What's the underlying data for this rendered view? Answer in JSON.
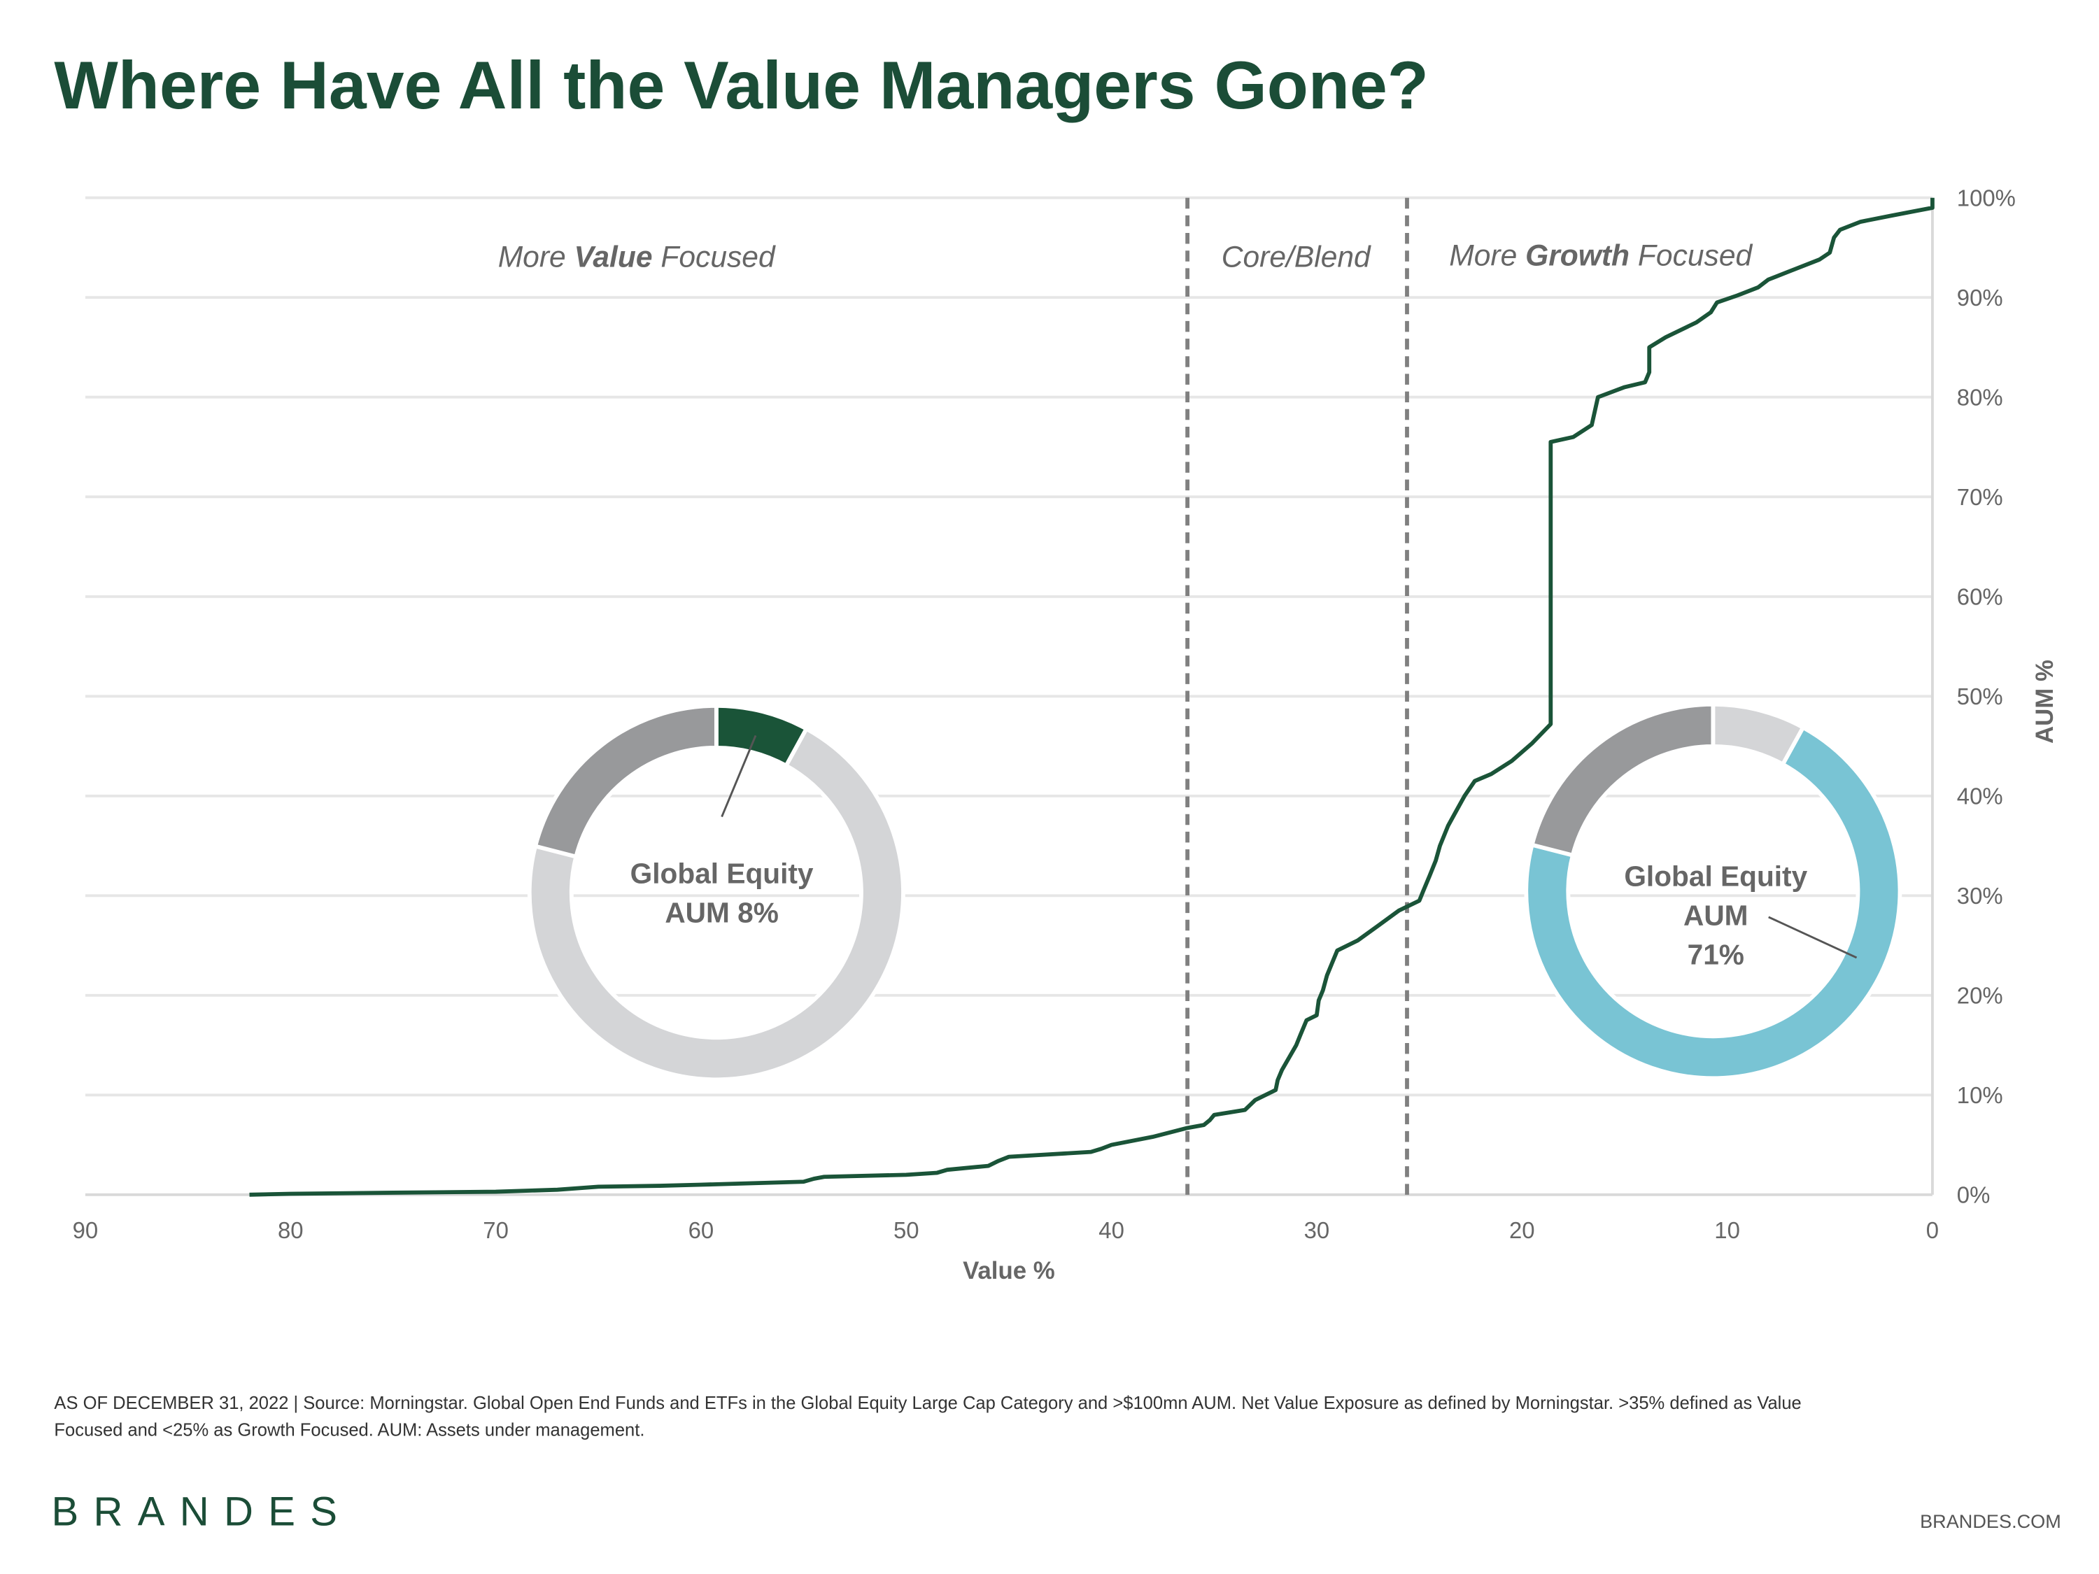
{
  "title": "Where Have All the Value Managers Gone?",
  "colors": {
    "title": "#1b4d37",
    "line": "#1a5438",
    "value_segment": "#1a5438",
    "growth_segment": "#79c4d4",
    "core_segment": "#98999b",
    "other_segment": "#d4d5d7",
    "grid": "#e6e6e6",
    "text": "#666666",
    "divider": "#808080"
  },
  "regions": {
    "value": {
      "prefix": "More ",
      "bold": "Value",
      "suffix": " Focused"
    },
    "core": "Core/Blend",
    "growth": {
      "prefix": "More ",
      "bold": "Growth",
      "suffix": " Focused"
    }
  },
  "donuts": {
    "left": {
      "line1": "Global Equity",
      "line2": "AUM 8%",
      "highlight": "value",
      "segments": [
        {
          "label": "Value",
          "pct": 8
        },
        {
          "label": "Growth",
          "pct": 71
        },
        {
          "label": "Core/Blend",
          "pct": 21
        }
      ]
    },
    "right": {
      "line1": "Global Equity",
      "line2": "AUM",
      "line3": "71%",
      "highlight": "growth",
      "segments": [
        {
          "label": "Value",
          "pct": 8
        },
        {
          "label": "Growth",
          "pct": 71
        },
        {
          "label": "Core/Blend",
          "pct": 21
        }
      ]
    }
  },
  "chart_data": {
    "type": "line",
    "xlabel": "Value %",
    "ylabel": "AUM %",
    "xlim": [
      90,
      0
    ],
    "ylim": [
      0,
      100
    ],
    "x_reversed": true,
    "y_axis_side": "right",
    "grid": "horizontal",
    "xticks": [
      "90",
      "80",
      "70",
      "60",
      "50",
      "40",
      "30",
      "20",
      "10",
      "0"
    ],
    "yticks": [
      "0%",
      "10%",
      "20%",
      "30%",
      "40%",
      "50%",
      "60%",
      "70%",
      "80%",
      "90%",
      "100%"
    ],
    "dividers": [
      36.3,
      25.6
    ],
    "series": [
      {
        "x": [
          82,
          80,
          75,
          70,
          67,
          65,
          62,
          60,
          55,
          54.5,
          54,
          50,
          48.5,
          48,
          46,
          45.5,
          45,
          41,
          40.5,
          40,
          38,
          36.3,
          35.5,
          35.2,
          35,
          33.5,
          33,
          32,
          31.9,
          31.7,
          31,
          30.8,
          30.5,
          30,
          29.9,
          29.7,
          29.5,
          29,
          28,
          27,
          26,
          25,
          24.8,
          24.5,
          24.2,
          24,
          23.6,
          23.2,
          22.8,
          22.3,
          21.5,
          20.5,
          19.5,
          18.6,
          18.6,
          17.5,
          16.6,
          16.3,
          15,
          14,
          13.8,
          13.8,
          13,
          11.5,
          10.8,
          10.5,
          9.5,
          8.5,
          8,
          7,
          5.5,
          5,
          4.8,
          4.5,
          3.5,
          2,
          1,
          0,
          0
        ],
        "y": [
          0,
          0.1,
          0.2,
          0.3,
          0.5,
          0.8,
          0.9,
          1.0,
          1.3,
          1.6,
          1.8,
          2.0,
          2.2,
          2.5,
          2.9,
          3.4,
          3.8,
          4.3,
          4.6,
          5.0,
          5.8,
          6.7,
          7.0,
          7.5,
          8.0,
          8.5,
          9.5,
          10.5,
          11.5,
          12.5,
          15,
          16,
          17.5,
          18,
          19.5,
          20.5,
          22,
          24.5,
          25.5,
          27,
          28.5,
          29.5,
          30.5,
          32,
          33.5,
          35,
          37,
          38.5,
          40,
          41.5,
          42.2,
          43.5,
          45.3,
          47.2,
          75.5,
          76,
          77.2,
          80,
          81,
          81.5,
          82.5,
          85,
          86,
          87.5,
          88.5,
          89.5,
          90.2,
          91,
          91.8,
          92.6,
          93.8,
          94.5,
          96,
          96.8,
          97.6,
          98.2,
          98.6,
          99,
          100
        ]
      }
    ]
  },
  "footnote": "AS OF DECEMBER 31, 2022 | Source: Morningstar. Global Open End Funds and ETFs in the Global Equity Large Cap Category and >$100mn AUM. Net Value Exposure as defined by Morningstar. >35% defined as Value",
  "footnote_line2": "Focused and <25% as Growth Focused. AUM: Assets under management.",
  "brand": "BRANDES",
  "website": "BRANDES.COM"
}
